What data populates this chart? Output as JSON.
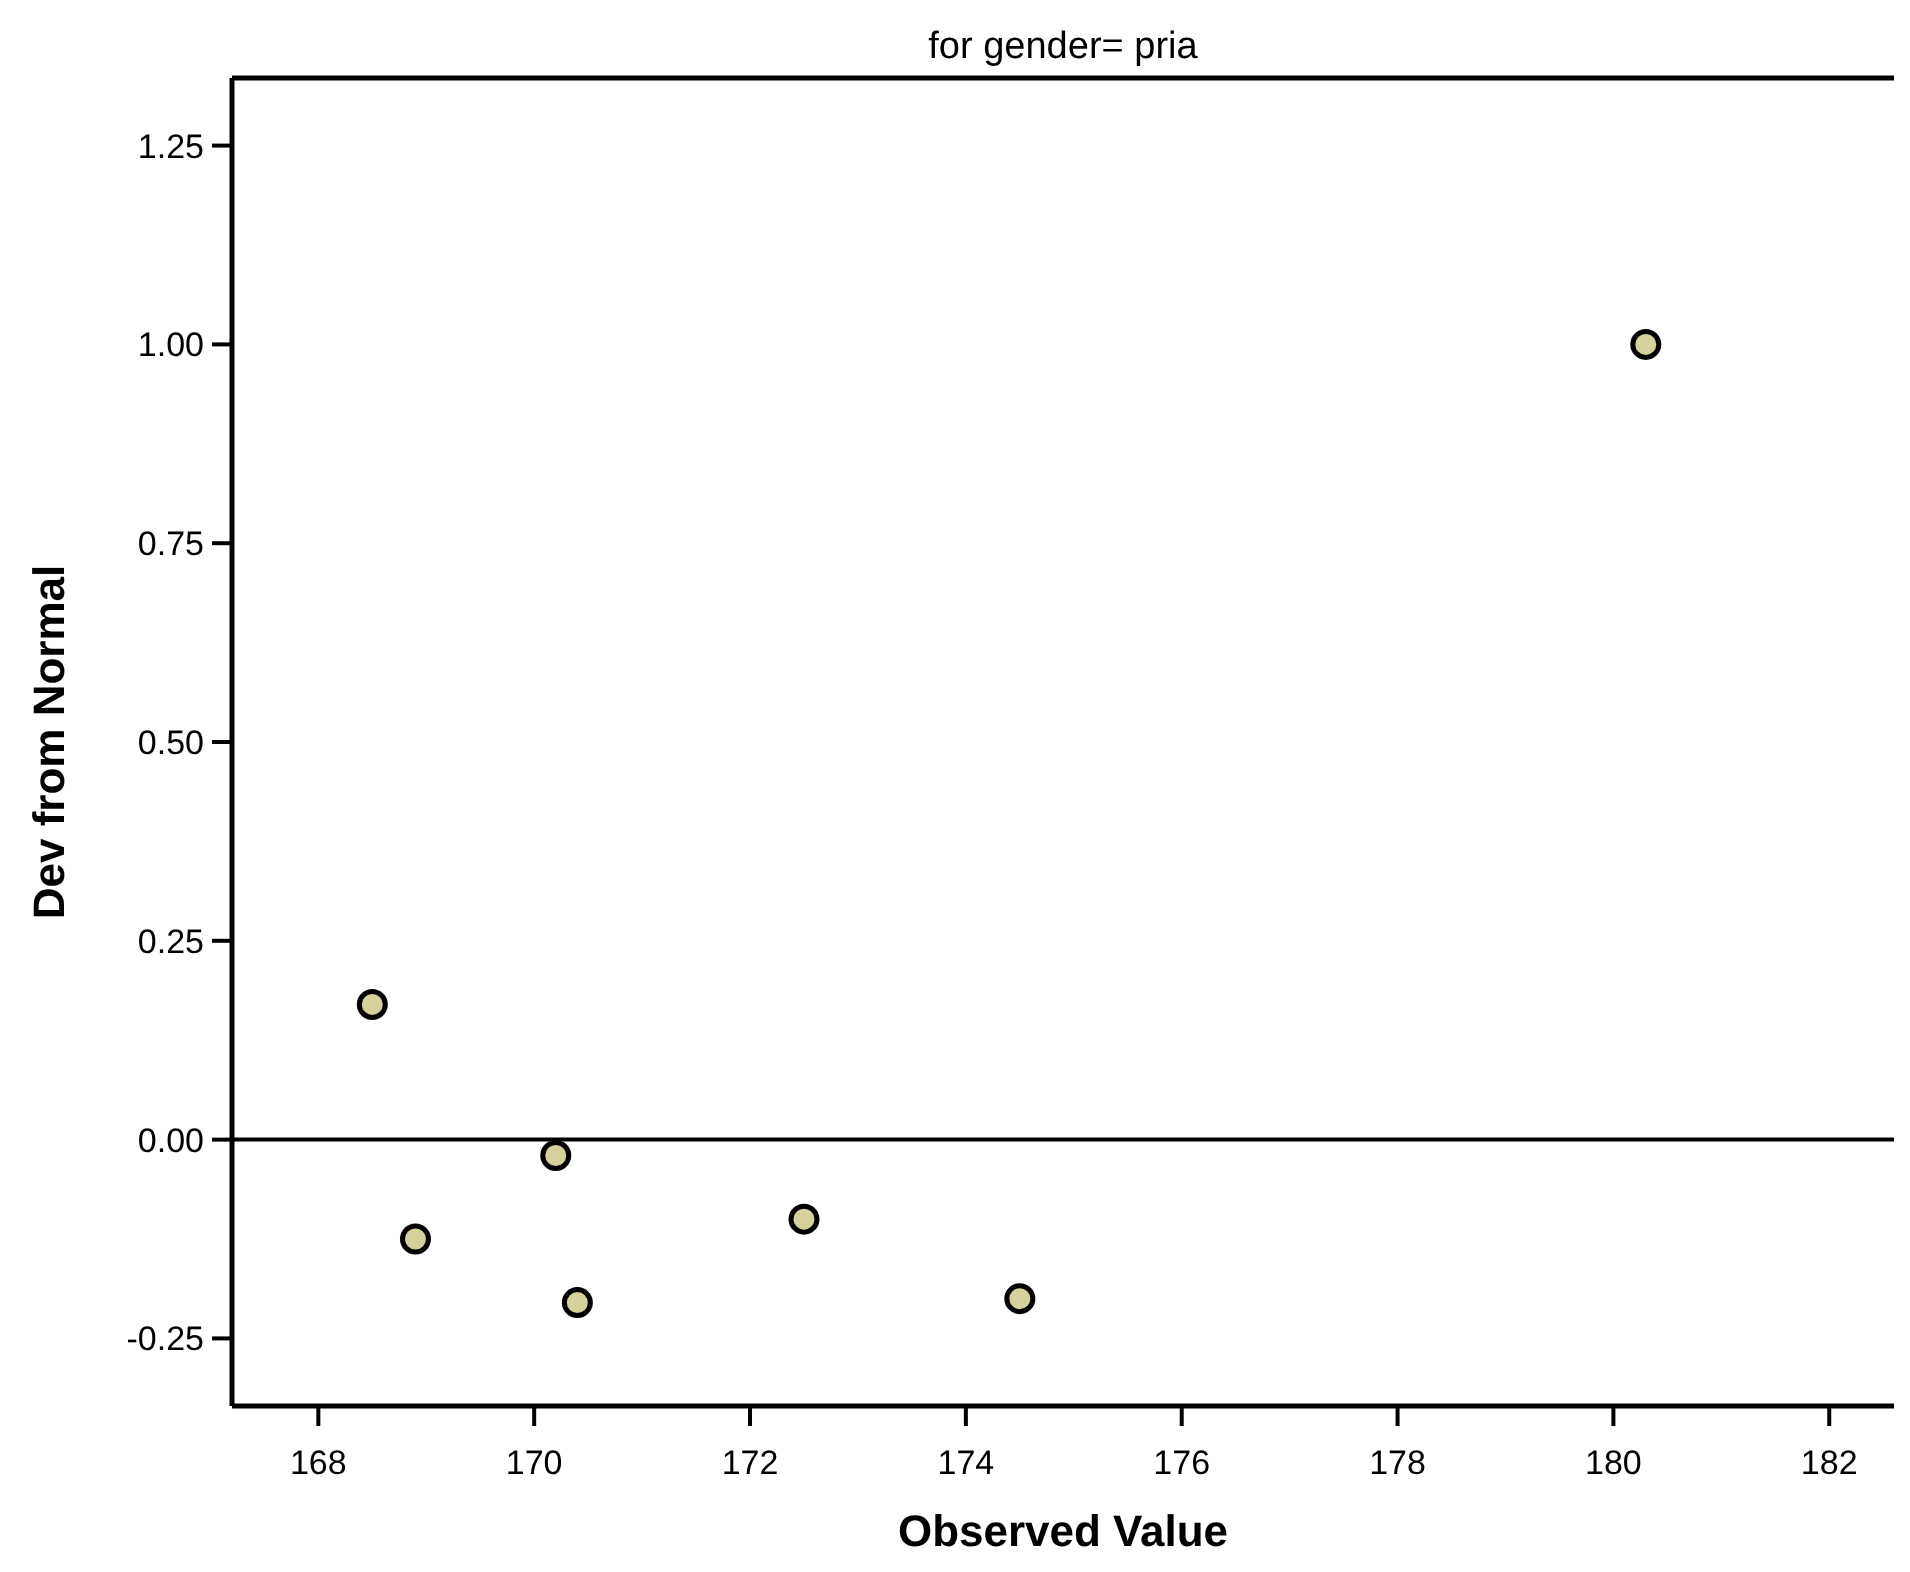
{
  "chart_data": {
    "type": "scatter",
    "title": "for gender= pria",
    "xlabel": "Observed Value",
    "ylabel": "Dev from Normal",
    "x": [
      168.5,
      168.9,
      170.2,
      170.4,
      172.5,
      174.5,
      180.3
    ],
    "series": [
      {
        "color": "#d6d09c",
        "values": [
          0.17,
          -0.125,
          -0.02,
          -0.205,
          -0.1,
          -0.2,
          1.0
        ]
      }
    ],
    "xlim": [
      167.2,
      182.6
    ],
    "xticks": [
      168,
      170,
      172,
      174,
      176,
      178,
      180,
      182
    ],
    "ylim": [
      -0.335,
      1.335
    ],
    "yticks": [
      {
        "value": -0.25,
        "label": "-0.25"
      },
      {
        "value": 0,
        "label": "0.00"
      },
      {
        "value": 0.25,
        "label": "0.25"
      },
      {
        "value": 0.5,
        "label": "0.50"
      },
      {
        "value": 0.75,
        "label": "0.75"
      },
      {
        "value": 1,
        "label": "1.00"
      },
      {
        "value": 1.25,
        "label": "1.25"
      }
    ],
    "ref_lines": [
      {
        "axis": "y",
        "value": 0,
        "color": "#000000"
      }
    ],
    "marker": "circle",
    "grid": false
  }
}
